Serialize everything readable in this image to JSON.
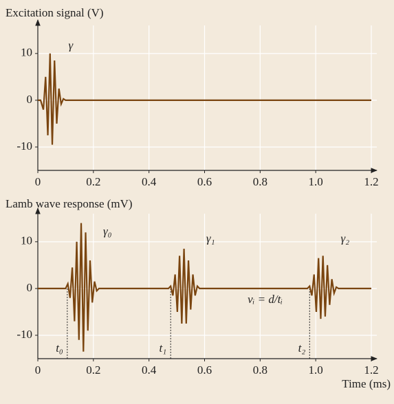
{
  "chart_data": [
    {
      "type": "line",
      "title": "Excitation signal (V)",
      "series": [
        {
          "name": "excitation",
          "color": "#7a4510",
          "x": [
            0,
            0.01,
            0.02,
            0.028,
            0.036,
            0.044,
            0.052,
            0.06,
            0.068,
            0.076,
            0.084,
            0.092,
            0.1,
            0.11,
            1.2
          ],
          "values": [
            0,
            0,
            -2,
            5,
            -7.5,
            10,
            -9.5,
            8.5,
            -5,
            2.5,
            -0.8,
            0.3,
            0,
            0,
            0
          ]
        }
      ],
      "xlim": [
        0,
        1.2
      ],
      "xticks": [
        0,
        0.2,
        0.4,
        0.6,
        0.8,
        {
          "value": 1,
          "label": "1.0"
        },
        1.2
      ],
      "ylim": [
        -15,
        16
      ],
      "yticks": [
        -10,
        0,
        10
      ],
      "grid": true,
      "annotations": [
        {
          "text": "γ",
          "x": 0.11,
          "y": 11.5
        }
      ]
    },
    {
      "type": "line",
      "title": "Lamb wave response (mV)",
      "xlabel": "Time (ms)",
      "series": [
        {
          "name": "response",
          "color": "#7a4510",
          "x": [
            0,
            0.1,
            0.108,
            0.116,
            0.124,
            0.132,
            0.14,
            0.148,
            0.156,
            0.164,
            0.172,
            0.18,
            0.188,
            0.196,
            0.204,
            0.212,
            0.22,
            0.47,
            0.478,
            0.486,
            0.494,
            0.502,
            0.51,
            0.518,
            0.526,
            0.534,
            0.542,
            0.55,
            0.558,
            0.566,
            0.574,
            0.582,
            0.97,
            0.978,
            0.986,
            0.994,
            1.002,
            1.01,
            1.018,
            1.026,
            1.034,
            1.042,
            1.05,
            1.058,
            1.066,
            1.074,
            1.082,
            1.2
          ],
          "values": [
            0,
            0,
            1,
            -2,
            4.5,
            -7,
            10,
            -11,
            14,
            -13.5,
            12,
            -9,
            6,
            -3,
            1.5,
            -0.5,
            0,
            0,
            0.5,
            -1.5,
            3,
            -5,
            7,
            -7.5,
            8.5,
            -7.5,
            6,
            -4.5,
            3,
            -1.5,
            0.5,
            0,
            0,
            0.5,
            -1.5,
            3,
            -5,
            6.5,
            -6.5,
            7,
            -6,
            5,
            -3.5,
            2,
            -1,
            0.3,
            0,
            0
          ]
        }
      ],
      "xlim": [
        0,
        1.2
      ],
      "xticks": [
        0,
        0.2,
        0.4,
        0.6,
        0.8,
        {
          "value": 1,
          "label": "1.0"
        },
        1.2
      ],
      "ylim": [
        -15,
        16
      ],
      "yticks": [
        -10,
        0,
        10
      ],
      "grid": true,
      "annotations": [
        {
          "text": "γ₀",
          "x": 0.235,
          "y": 12
        },
        {
          "text": "γ₁",
          "x": 0.606,
          "y": 10.5
        },
        {
          "text": "γ₂",
          "x": 1.09,
          "y": 10.5
        },
        {
          "text": "vᵢ = d/tᵢ",
          "x": 0.755,
          "y": -2.5
        }
      ],
      "markers": [
        {
          "label": "t₀",
          "x": 0.106
        },
        {
          "label": "t₁",
          "x": 0.478
        },
        {
          "label": "t₂",
          "x": 0.978
        }
      ]
    }
  ]
}
